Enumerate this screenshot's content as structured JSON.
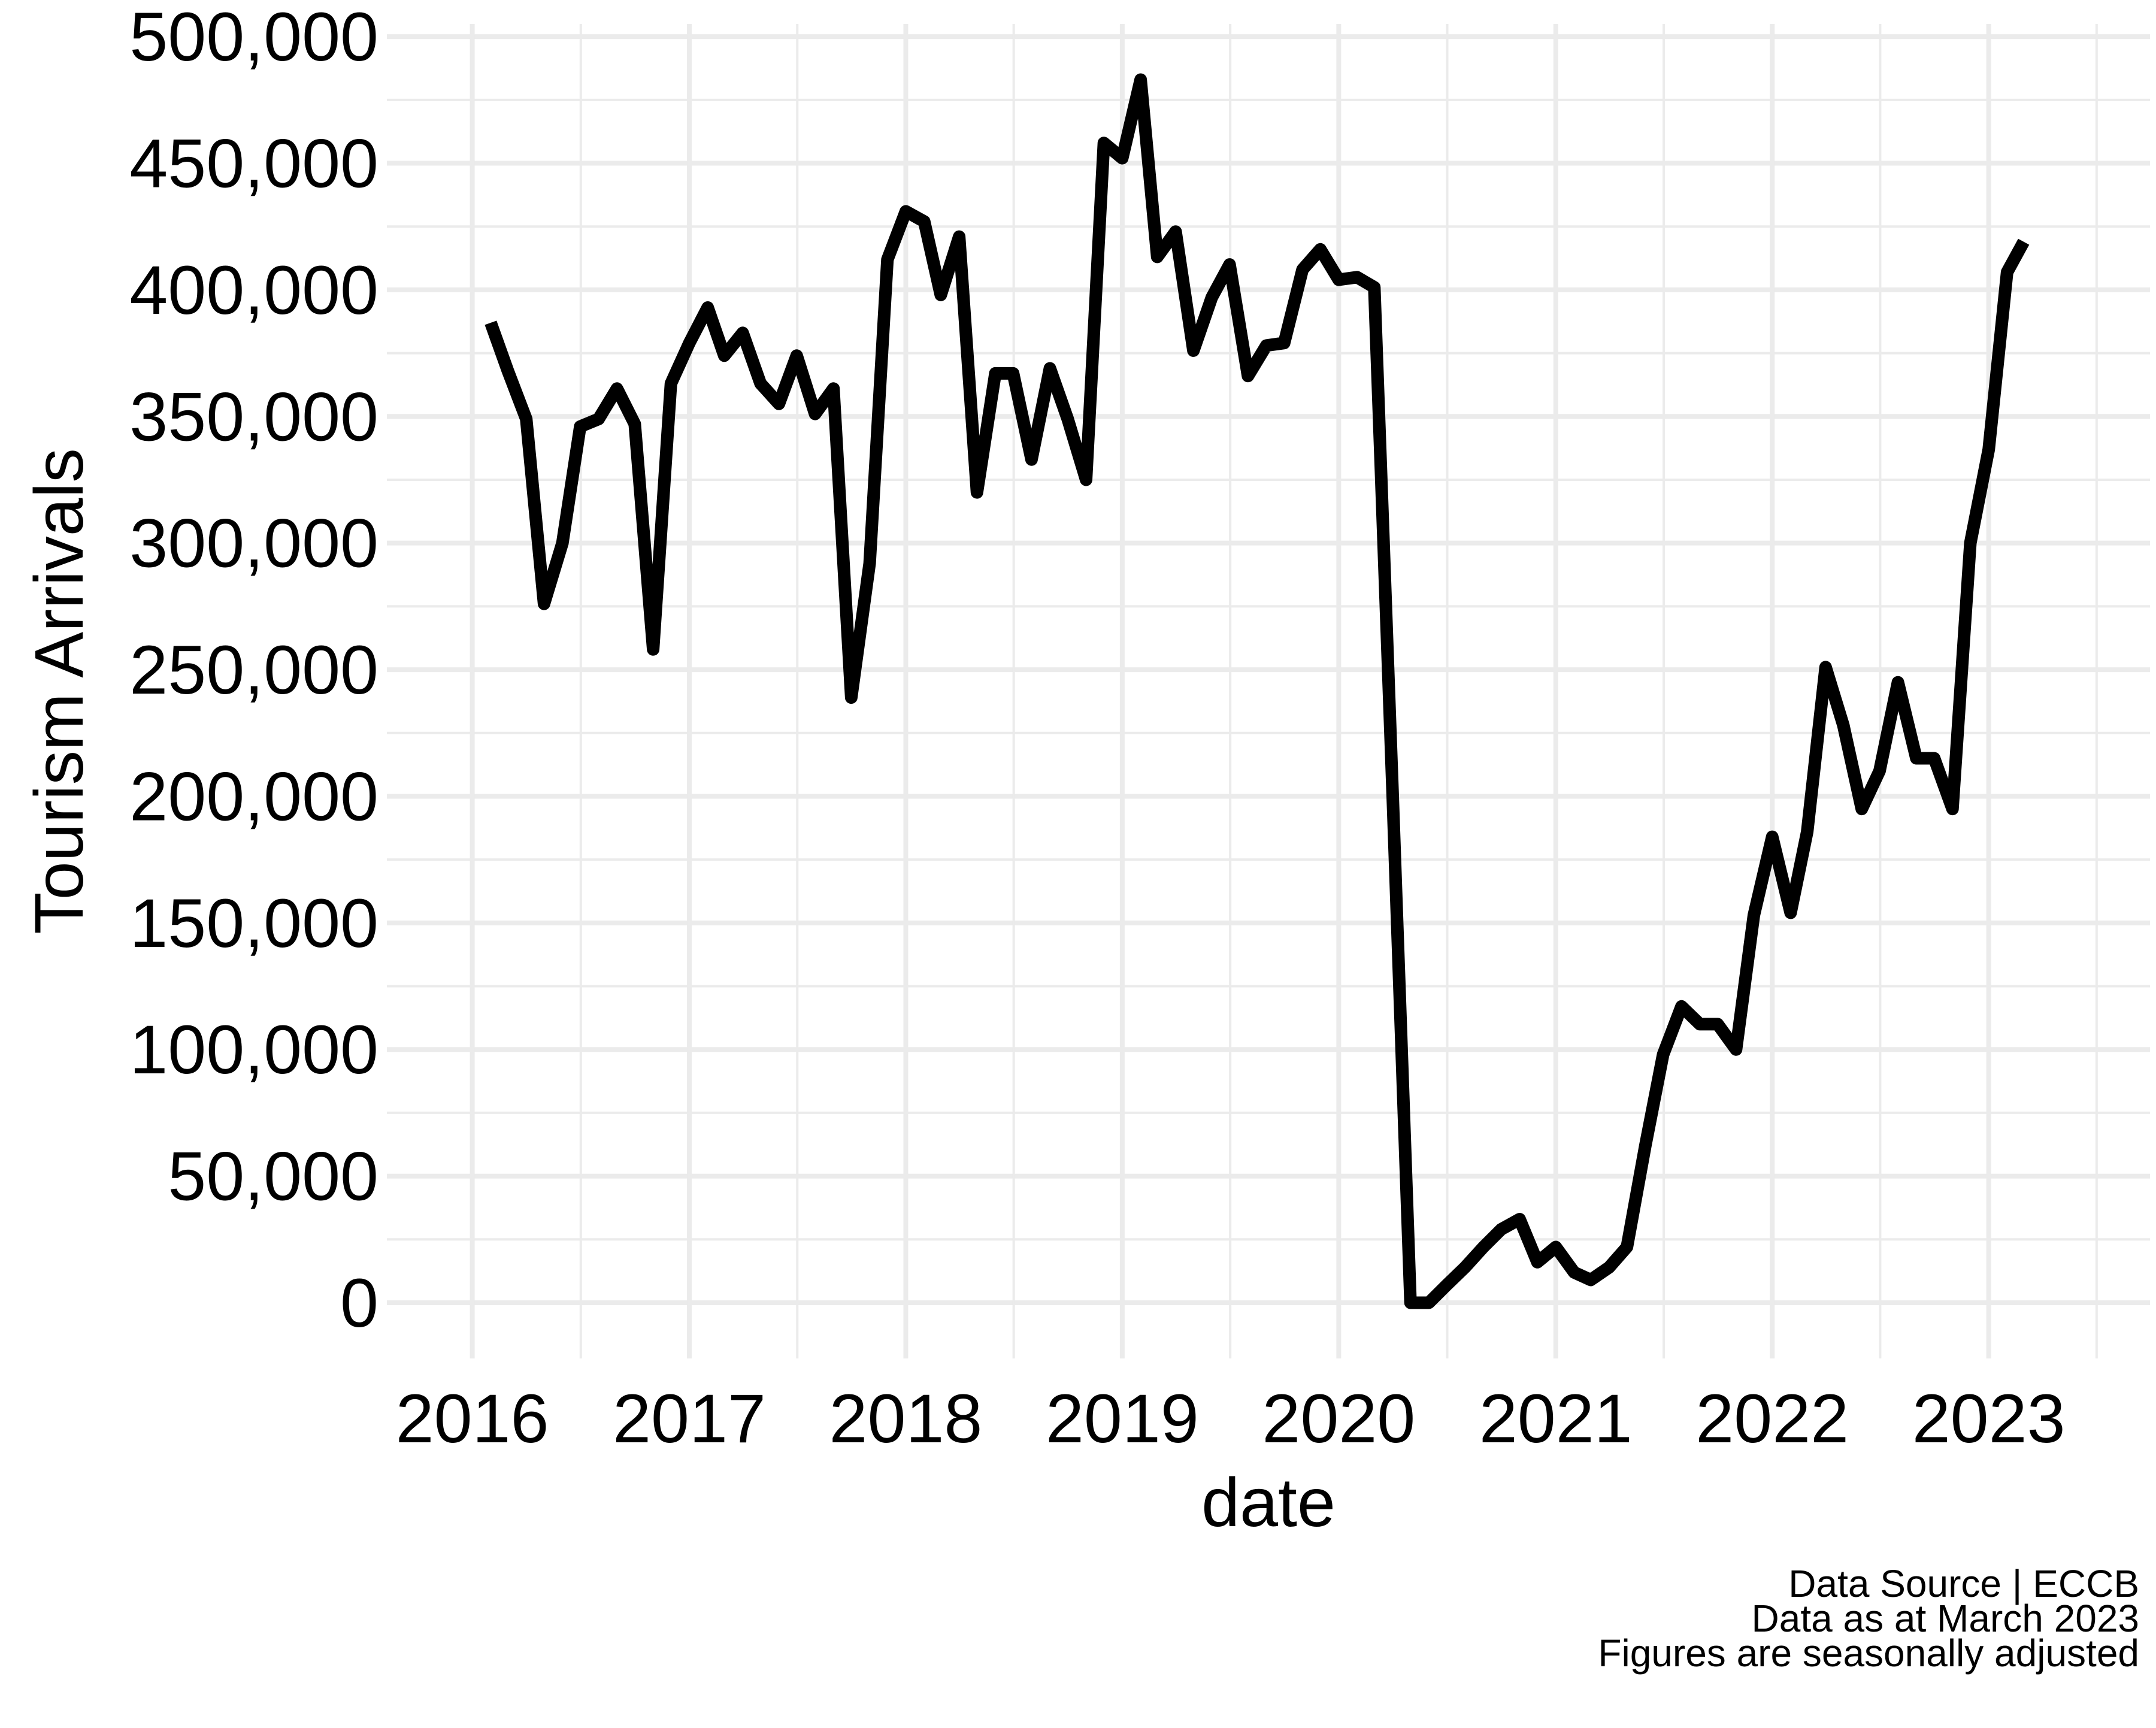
{
  "chart_data": {
    "type": "line",
    "xlabel": "date",
    "ylabel": "Tourism Arrivals",
    "x_tick_labels": [
      "2016",
      "2017",
      "2018",
      "2019",
      "2020",
      "2021",
      "2022",
      "2023"
    ],
    "y_tick_labels": [
      "0",
      "50,000",
      "100,000",
      "150,000",
      "200,000",
      "250,000",
      "300,000",
      "350,000",
      "400,000",
      "450,000",
      "500,000"
    ],
    "xlim": [
      "2015-08-10",
      "2023-09-30"
    ],
    "ylim": [
      -22000,
      505000
    ],
    "grid": true,
    "caption": [
      "Data Source | ECCB",
      "Data as at March 2023",
      "Figures are seasonally adjusted"
    ],
    "series": [
      {
        "x": [
          "2016-02",
          "2016-03",
          "2016-04",
          "2016-05",
          "2016-06",
          "2016-07",
          "2016-08",
          "2016-09",
          "2016-10",
          "2016-11",
          "2016-12",
          "2017-01",
          "2017-02",
          "2017-03",
          "2017-04",
          "2017-05",
          "2017-06",
          "2017-07",
          "2017-08",
          "2017-09",
          "2017-10",
          "2017-11",
          "2017-12",
          "2018-01",
          "2018-02",
          "2018-03",
          "2018-04",
          "2018-05",
          "2018-06",
          "2018-07",
          "2018-08",
          "2018-09",
          "2018-10",
          "2018-11",
          "2018-12",
          "2019-01",
          "2019-02",
          "2019-03",
          "2019-04",
          "2019-05",
          "2019-06",
          "2019-07",
          "2019-08",
          "2019-09",
          "2019-10",
          "2019-11",
          "2019-12",
          "2020-01",
          "2020-02",
          "2020-03",
          "2020-04",
          "2020-05",
          "2020-06",
          "2020-07",
          "2020-08",
          "2020-09",
          "2020-10",
          "2020-11",
          "2020-12",
          "2021-01",
          "2021-02",
          "2021-03",
          "2021-04",
          "2021-05",
          "2021-06",
          "2021-07",
          "2021-08",
          "2021-09",
          "2021-10",
          "2021-11",
          "2021-12",
          "2022-01",
          "2022-02",
          "2022-03",
          "2022-04",
          "2022-05",
          "2022-06",
          "2022-07",
          "2022-08",
          "2022-09",
          "2022-10",
          "2022-11",
          "2022-12",
          "2023-01",
          "2023-02",
          "2023-03"
        ],
        "y": [
          387000,
          368000,
          349000,
          276000,
          300000,
          346000,
          349000,
          361000,
          347000,
          258000,
          363000,
          379000,
          393000,
          374000,
          383000,
          363000,
          355000,
          374000,
          351000,
          361000,
          239000,
          292000,
          412000,
          431000,
          427000,
          398000,
          421000,
          320000,
          367000,
          367000,
          333000,
          369000,
          349000,
          325000,
          458000,
          452000,
          483000,
          413000,
          423000,
          376000,
          397000,
          410000,
          366000,
          378000,
          379000,
          408000,
          416000,
          404000,
          405000,
          401000,
          200000,
          0,
          0,
          7000,
          14000,
          22000,
          29000,
          33000,
          16000,
          22000,
          12000,
          9000,
          14000,
          22000,
          62000,
          98000,
          117000,
          110000,
          110000,
          100000,
          153000,
          184000,
          154000,
          186000,
          251000,
          228000,
          195000,
          210000,
          245000,
          215000,
          215000,
          195000,
          300000,
          337000,
          407000,
          419000
        ]
      }
    ]
  }
}
